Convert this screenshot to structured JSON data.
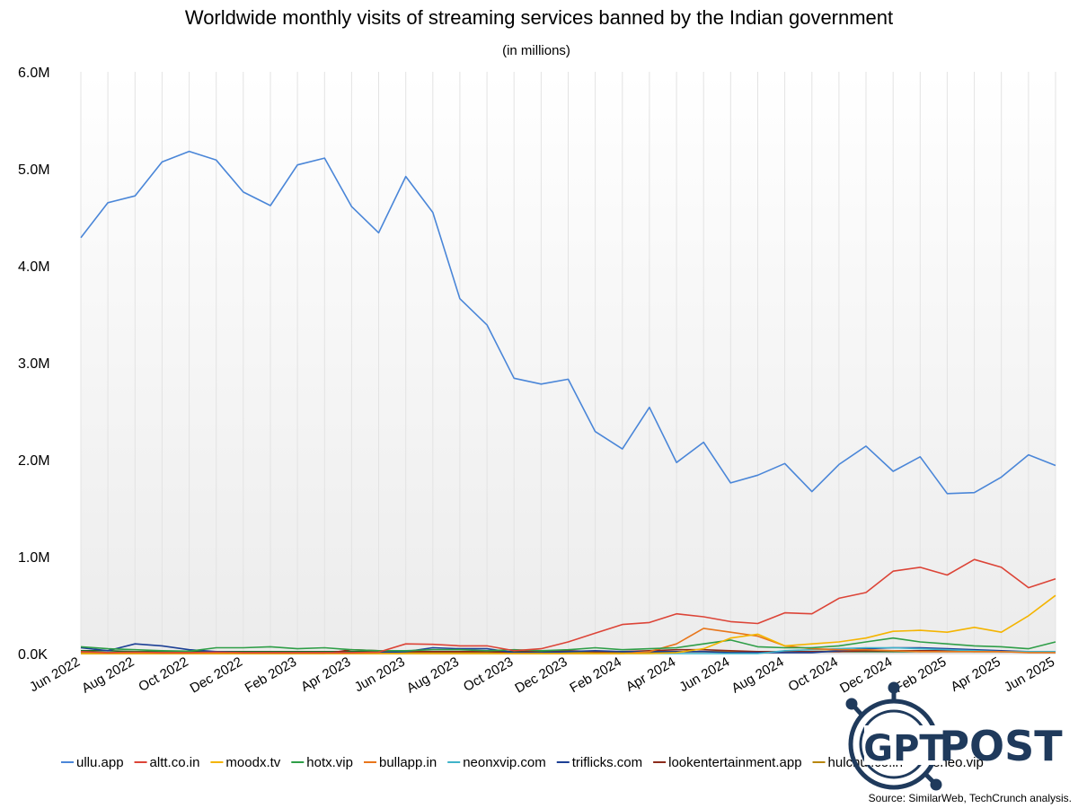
{
  "chart_data": {
    "type": "line",
    "title": "Worldwide monthly visits of streaming services banned by the Indian government",
    "subtitle": "(in millions)",
    "xlabel": "",
    "ylabel": "",
    "ylim": [
      0,
      6000000
    ],
    "y_ticks": [
      {
        "value": 0,
        "label": "0.0K"
      },
      {
        "value": 1000000,
        "label": "1.0M"
      },
      {
        "value": 2000000,
        "label": "2.0M"
      },
      {
        "value": 3000000,
        "label": "3.0M"
      },
      {
        "value": 4000000,
        "label": "4.0M"
      },
      {
        "value": 5000000,
        "label": "5.0M"
      },
      {
        "value": 6000000,
        "label": "6.0M"
      }
    ],
    "x": [
      "Jun 2022",
      "Jul 2022",
      "Aug 2022",
      "Sep 2022",
      "Oct 2022",
      "Nov 2022",
      "Dec 2022",
      "Jan 2023",
      "Feb 2023",
      "Mar 2023",
      "Apr 2023",
      "May 2023",
      "Jun 2023",
      "Jul 2023",
      "Aug 2023",
      "Sep 2023",
      "Oct 2023",
      "Nov 2023",
      "Dec 2023",
      "Jan 2024",
      "Feb 2024",
      "Mar 2024",
      "Apr 2024",
      "May 2024",
      "Jun 2024",
      "Jul 2024",
      "Aug 2024",
      "Sep 2024",
      "Oct 2024",
      "Nov 2024",
      "Dec 2024",
      "Jan 2025",
      "Feb 2025",
      "Mar 2025",
      "Apr 2025",
      "May 2025",
      "Jun 2025"
    ],
    "x_tick_labels": [
      "Jun 2022",
      "Aug 2022",
      "Oct 2022",
      "Dec 2022",
      "Feb 2023",
      "Apr 2023",
      "Jun 2023",
      "Aug 2023",
      "Oct 2023",
      "Dec 2023",
      "Feb 2024",
      "Apr 2024",
      "Jun 2024",
      "Aug 2024",
      "Oct 2024",
      "Dec 2024",
      "Feb 2025",
      "Apr 2025",
      "Jun 2025"
    ],
    "grid": "vertical",
    "legend_position": "bottom",
    "series": [
      {
        "name": "ullu.app",
        "color": "#4a86d8",
        "values": [
          4290000,
          4650000,
          4720000,
          5070000,
          5180000,
          5090000,
          4760000,
          4620000,
          5040000,
          5110000,
          4610000,
          4340000,
          4920000,
          4550000,
          3660000,
          3390000,
          2840000,
          2780000,
          2830000,
          2290000,
          2110000,
          2540000,
          1970000,
          2180000,
          1760000,
          1840000,
          1960000,
          1670000,
          1950000,
          2140000,
          1880000,
          2030000,
          1650000,
          1660000,
          1820000,
          2050000,
          1940000
        ]
      },
      {
        "name": "altt.co.in",
        "color": "#dc4437",
        "values": [
          20000,
          10000,
          15000,
          10000,
          10000,
          15000,
          10000,
          10000,
          10000,
          10000,
          10000,
          15000,
          100000,
          95000,
          80000,
          80000,
          30000,
          50000,
          120000,
          210000,
          300000,
          320000,
          410000,
          380000,
          330000,
          310000,
          420000,
          410000,
          570000,
          630000,
          850000,
          890000,
          810000,
          970000,
          890000,
          680000,
          770000
        ]
      },
      {
        "name": "moodx.tv",
        "color": "#f4b400",
        "values": [
          0,
          0,
          0,
          0,
          0,
          0,
          0,
          0,
          0,
          0,
          0,
          0,
          0,
          0,
          0,
          0,
          0,
          0,
          0,
          0,
          0,
          0,
          10000,
          50000,
          160000,
          200000,
          80000,
          100000,
          120000,
          160000,
          230000,
          240000,
          220000,
          270000,
          220000,
          390000,
          600000
        ]
      },
      {
        "name": "hotx.vip",
        "color": "#2e9e47",
        "values": [
          70000,
          50000,
          40000,
          30000,
          25000,
          60000,
          60000,
          70000,
          50000,
          60000,
          40000,
          30000,
          30000,
          40000,
          40000,
          30000,
          40000,
          30000,
          40000,
          60000,
          40000,
          50000,
          60000,
          100000,
          140000,
          70000,
          60000,
          60000,
          80000,
          120000,
          160000,
          120000,
          100000,
          80000,
          70000,
          50000,
          120000
        ]
      },
      {
        "name": "bullapp.in",
        "color": "#e8761b",
        "values": [
          0,
          0,
          0,
          0,
          0,
          0,
          0,
          0,
          0,
          0,
          0,
          0,
          0,
          0,
          0,
          0,
          0,
          0,
          0,
          0,
          0,
          20000,
          100000,
          260000,
          220000,
          180000,
          80000,
          50000,
          40000,
          40000,
          30000,
          20000,
          20000,
          20000,
          20000,
          10000,
          10000
        ]
      },
      {
        "name": "neonxvip.com",
        "color": "#3fb3c9",
        "values": [
          0,
          0,
          0,
          0,
          0,
          0,
          0,
          0,
          0,
          0,
          0,
          0,
          0,
          0,
          0,
          0,
          0,
          0,
          0,
          0,
          0,
          0,
          0,
          0,
          0,
          0,
          30000,
          40000,
          50000,
          60000,
          60000,
          50000,
          40000,
          30000,
          20000,
          20000,
          20000
        ]
      },
      {
        "name": "triflicks.com",
        "color": "#1c3f95",
        "values": [
          60000,
          30000,
          100000,
          80000,
          40000,
          20000,
          10000,
          10000,
          10000,
          10000,
          10000,
          10000,
          20000,
          60000,
          50000,
          50000,
          10000,
          10000,
          20000,
          30000,
          20000,
          20000,
          20000,
          20000,
          10000,
          10000,
          10000,
          10000,
          30000,
          50000,
          60000,
          60000,
          50000,
          40000,
          30000,
          20000,
          20000
        ]
      },
      {
        "name": "lookentertainment.app",
        "color": "#8b2a1a",
        "values": [
          0,
          0,
          0,
          0,
          0,
          0,
          0,
          0,
          0,
          0,
          40000,
          30000,
          20000,
          20000,
          20000,
          20000,
          10000,
          30000,
          30000,
          20000,
          20000,
          30000,
          40000,
          40000,
          30000,
          20000,
          20000,
          20000,
          20000,
          30000,
          30000,
          30000,
          30000,
          30000,
          20000,
          20000,
          20000
        ]
      },
      {
        "name": "hulchul.co.in",
        "color": "#b8860b",
        "values": [
          10000,
          10000,
          10000,
          10000,
          10000,
          10000,
          10000,
          10000,
          10000,
          10000,
          10000,
          10000,
          10000,
          10000,
          10000,
          10000,
          10000,
          10000,
          10000,
          10000,
          10000,
          10000,
          20000,
          20000,
          20000,
          20000,
          20000,
          20000,
          30000,
          30000,
          30000,
          30000,
          30000,
          20000,
          20000,
          20000,
          20000
        ]
      },
      {
        "name": "feneo.vip",
        "color": "#1a6b2a",
        "values": [
          30000,
          30000,
          20000,
          20000,
          20000,
          20000,
          20000,
          20000,
          20000,
          20000,
          20000,
          20000,
          20000,
          20000,
          20000,
          20000,
          20000,
          20000,
          20000,
          20000,
          20000,
          20000,
          20000,
          20000,
          20000,
          20000,
          20000,
          20000,
          20000,
          20000,
          20000,
          20000,
          20000,
          20000,
          20000,
          20000,
          20000
        ]
      }
    ]
  },
  "source_text": "Source: SimilarWeb, TechCrunch analysis.",
  "logo": {
    "left": "GPT",
    "right": "POST",
    "color": "#1f3a5c"
  }
}
